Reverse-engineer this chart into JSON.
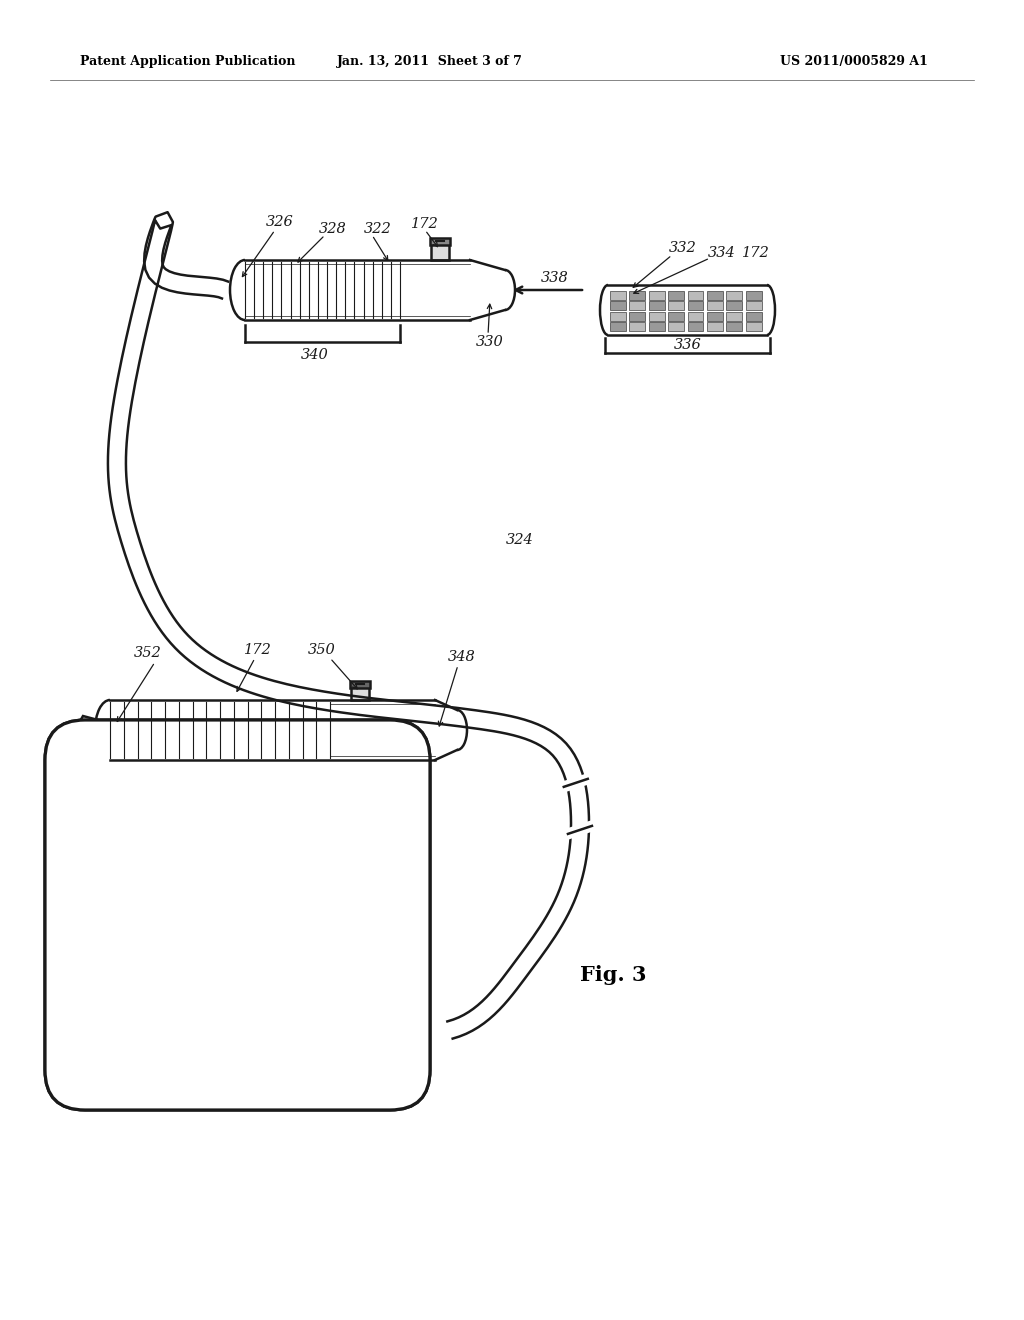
{
  "background_color": "#ffffff",
  "header_left": "Patent Application Publication",
  "header_center": "Jan. 13, 2011  Sheet 3 of 7",
  "header_right": "US 2011/0005829 A1",
  "fig_label": "Fig. 3",
  "line_color": "#1a1a1a",
  "lw_main": 1.8,
  "lw_cable": 2.0,
  "lw_thin": 0.7
}
